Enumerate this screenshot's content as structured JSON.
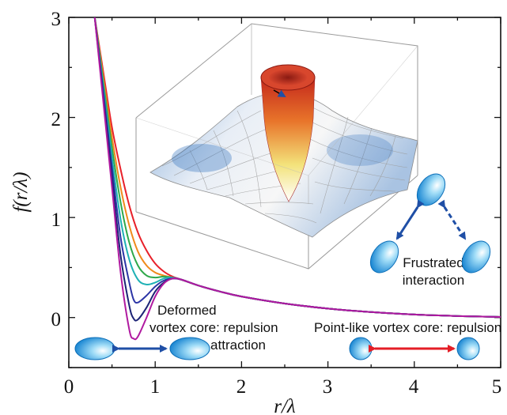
{
  "chart_data": {
    "type": "line",
    "title": "",
    "xlabel": "r/λ",
    "ylabel": "f(r/λ)",
    "xlim": [
      0,
      5
    ],
    "ylim": [
      -0.5,
      3
    ],
    "x_ticks": [
      "0",
      "1",
      "2",
      "3",
      "4",
      "5"
    ],
    "y_ticks": [
      "0",
      "1",
      "2",
      "3"
    ],
    "grid": false,
    "legend": "none",
    "series": [
      {
        "color": "#e8212a",
        "values": [
          [
            0.3,
            3.0
          ],
          [
            0.4,
            2.45
          ],
          [
            0.5,
            1.9
          ],
          [
            0.6,
            1.48
          ],
          [
            0.7,
            1.12
          ],
          [
            0.8,
            0.85
          ],
          [
            0.9,
            0.67
          ],
          [
            1.0,
            0.54
          ],
          [
            1.1,
            0.46
          ],
          [
            1.2,
            0.41
          ],
          [
            1.3,
            0.38
          ],
          [
            1.5,
            0.32
          ],
          [
            1.75,
            0.26
          ],
          [
            2.0,
            0.21
          ],
          [
            2.5,
            0.14
          ],
          [
            3.0,
            0.09
          ],
          [
            3.5,
            0.055
          ],
          [
            4.0,
            0.03
          ],
          [
            4.5,
            0.015
          ],
          [
            5.0,
            0.006
          ]
        ]
      },
      {
        "color": "#f08a1c",
        "values": [
          [
            0.3,
            3.0
          ],
          [
            0.4,
            2.4
          ],
          [
            0.5,
            1.8
          ],
          [
            0.6,
            1.3
          ],
          [
            0.7,
            0.92
          ],
          [
            0.8,
            0.66
          ],
          [
            0.9,
            0.52
          ],
          [
            1.0,
            0.45
          ],
          [
            1.1,
            0.42
          ],
          [
            1.2,
            0.4
          ],
          [
            1.3,
            0.38
          ],
          [
            1.5,
            0.32
          ],
          [
            1.75,
            0.26
          ],
          [
            2.0,
            0.21
          ],
          [
            2.5,
            0.14
          ],
          [
            3.0,
            0.09
          ],
          [
            3.5,
            0.055
          ],
          [
            4.0,
            0.03
          ],
          [
            4.5,
            0.015
          ],
          [
            5.0,
            0.006
          ]
        ]
      },
      {
        "color": "#2fa84a",
        "values": [
          [
            0.3,
            3.0
          ],
          [
            0.4,
            2.35
          ],
          [
            0.5,
            1.7
          ],
          [
            0.6,
            1.15
          ],
          [
            0.7,
            0.75
          ],
          [
            0.8,
            0.52
          ],
          [
            0.9,
            0.42
          ],
          [
            1.0,
            0.4
          ],
          [
            1.1,
            0.41
          ],
          [
            1.2,
            0.4
          ],
          [
            1.3,
            0.38
          ],
          [
            1.5,
            0.32
          ],
          [
            1.75,
            0.26
          ],
          [
            2.0,
            0.21
          ],
          [
            2.5,
            0.14
          ],
          [
            3.0,
            0.09
          ],
          [
            3.5,
            0.055
          ],
          [
            4.0,
            0.03
          ],
          [
            4.5,
            0.015
          ],
          [
            5.0,
            0.006
          ]
        ]
      },
      {
        "color": "#1fb1b5",
        "values": [
          [
            0.3,
            3.0
          ],
          [
            0.4,
            2.3
          ],
          [
            0.5,
            1.6
          ],
          [
            0.6,
            0.98
          ],
          [
            0.7,
            0.58
          ],
          [
            0.8,
            0.38
          ],
          [
            0.9,
            0.33
          ],
          [
            1.0,
            0.35
          ],
          [
            1.1,
            0.39
          ],
          [
            1.2,
            0.4
          ],
          [
            1.3,
            0.38
          ],
          [
            1.5,
            0.32
          ],
          [
            1.75,
            0.26
          ],
          [
            2.0,
            0.21
          ],
          [
            2.5,
            0.14
          ],
          [
            3.0,
            0.09
          ],
          [
            3.5,
            0.055
          ],
          [
            4.0,
            0.03
          ],
          [
            4.5,
            0.015
          ],
          [
            5.0,
            0.006
          ]
        ]
      },
      {
        "color": "#2c35a6",
        "values": [
          [
            0.3,
            3.0
          ],
          [
            0.4,
            2.25
          ],
          [
            0.5,
            1.5
          ],
          [
            0.6,
            0.8
          ],
          [
            0.7,
            0.35
          ],
          [
            0.75,
            0.18
          ],
          [
            0.8,
            0.15
          ],
          [
            0.9,
            0.22
          ],
          [
            1.0,
            0.31
          ],
          [
            1.1,
            0.37
          ],
          [
            1.2,
            0.39
          ],
          [
            1.3,
            0.38
          ],
          [
            1.5,
            0.32
          ],
          [
            1.75,
            0.26
          ],
          [
            2.0,
            0.21
          ],
          [
            2.5,
            0.14
          ],
          [
            3.0,
            0.09
          ],
          [
            3.5,
            0.055
          ],
          [
            4.0,
            0.03
          ],
          [
            4.5,
            0.015
          ],
          [
            5.0,
            0.006
          ]
        ]
      },
      {
        "color": "#1c2375",
        "values": [
          [
            0.3,
            3.0
          ],
          [
            0.4,
            2.2
          ],
          [
            0.5,
            1.4
          ],
          [
            0.6,
            0.62
          ],
          [
            0.7,
            0.12
          ],
          [
            0.75,
            -0.01
          ],
          [
            0.8,
            -0.02
          ],
          [
            0.9,
            0.1
          ],
          [
            1.0,
            0.26
          ],
          [
            1.1,
            0.35
          ],
          [
            1.2,
            0.39
          ],
          [
            1.3,
            0.38
          ],
          [
            1.5,
            0.32
          ],
          [
            1.75,
            0.26
          ],
          [
            2.0,
            0.21
          ],
          [
            2.5,
            0.14
          ],
          [
            3.0,
            0.09
          ],
          [
            3.5,
            0.055
          ],
          [
            4.0,
            0.03
          ],
          [
            4.5,
            0.015
          ],
          [
            5.0,
            0.006
          ]
        ]
      },
      {
        "color": "#b01aa0",
        "values": [
          [
            0.3,
            3.0
          ],
          [
            0.4,
            2.15
          ],
          [
            0.5,
            1.3
          ],
          [
            0.6,
            0.45
          ],
          [
            0.7,
            -0.12
          ],
          [
            0.75,
            -0.21
          ],
          [
            0.8,
            -0.19
          ],
          [
            0.9,
            0.0
          ],
          [
            1.0,
            0.21
          ],
          [
            1.1,
            0.34
          ],
          [
            1.2,
            0.39
          ],
          [
            1.3,
            0.38
          ],
          [
            1.5,
            0.32
          ],
          [
            1.75,
            0.26
          ],
          [
            2.0,
            0.21
          ],
          [
            2.5,
            0.14
          ],
          [
            3.0,
            0.09
          ],
          [
            3.5,
            0.055
          ],
          [
            4.0,
            0.03
          ],
          [
            4.5,
            0.015
          ],
          [
            5.0,
            0.006
          ]
        ]
      }
    ],
    "annotations": [
      {
        "id": "deformed",
        "lines": [
          "Deformed",
          "vortex core: repulsion",
          "& attraction"
        ]
      },
      {
        "id": "pointlike",
        "lines": [
          "Point-like vortex core: repulsion"
        ]
      },
      {
        "id": "frustrated",
        "lines": [
          "Frustrated",
          "interaction"
        ]
      }
    ],
    "colors": {
      "vortex_blue": "#2b9fe0",
      "double_arrow_blue": "#1f4fa6",
      "double_arrow_red": "#e41e26"
    }
  }
}
